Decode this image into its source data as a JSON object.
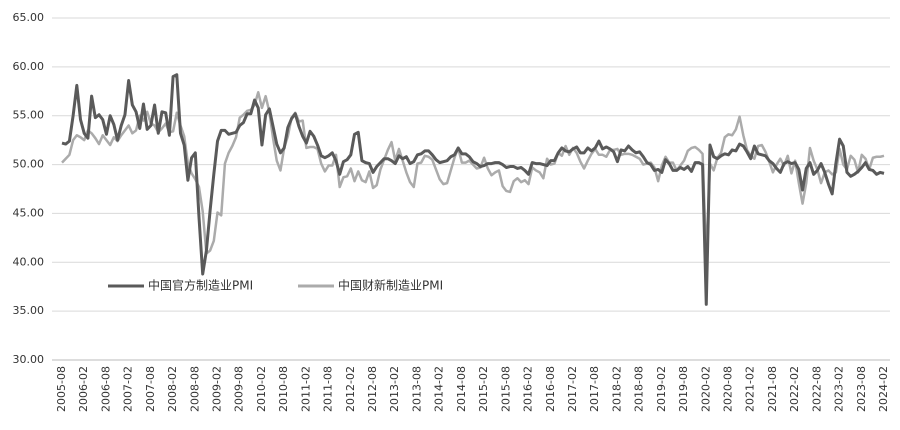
{
  "chart_data": {
    "type": "line",
    "categories": [
      "2005-08",
      null,
      null,
      null,
      null,
      null,
      "2006-02",
      null,
      null,
      null,
      null,
      null,
      "2006-08",
      null,
      null,
      null,
      null,
      null,
      "2007-02",
      null,
      null,
      null,
      null,
      null,
      "2007-08",
      null,
      null,
      null,
      null,
      null,
      "2008-02",
      null,
      null,
      null,
      null,
      null,
      "2008-08",
      null,
      null,
      null,
      null,
      null,
      "2009-02",
      null,
      null,
      null,
      null,
      null,
      "2009-08",
      null,
      null,
      null,
      null,
      null,
      "2010-02",
      null,
      null,
      null,
      null,
      null,
      "2010-08",
      null,
      null,
      null,
      null,
      null,
      "2011-02",
      null,
      null,
      null,
      null,
      null,
      "2011-08",
      null,
      null,
      null,
      null,
      null,
      "2012-02",
      null,
      null,
      null,
      null,
      null,
      "2012-08",
      null,
      null,
      null,
      null,
      null,
      "2013-02",
      null,
      null,
      null,
      null,
      null,
      "2013-08",
      null,
      null,
      null,
      null,
      null,
      "2014-02",
      null,
      null,
      null,
      null,
      null,
      "2014-08",
      null,
      null,
      null,
      null,
      null,
      "2015-02",
      null,
      null,
      null,
      null,
      null,
      "2015-08",
      null,
      null,
      null,
      null,
      null,
      "2016-02",
      null,
      null,
      null,
      null,
      null,
      "2016-08",
      null,
      null,
      null,
      null,
      null,
      "2017-02",
      null,
      null,
      null,
      null,
      null,
      "2017-08",
      null,
      null,
      null,
      null,
      null,
      "2018-02",
      null,
      null,
      null,
      null,
      null,
      "2018-08",
      null,
      null,
      null,
      null,
      null,
      "2019-02",
      null,
      null,
      null,
      null,
      null,
      "2019-08",
      null,
      null,
      null,
      null,
      null,
      "2020-02",
      null,
      null,
      null,
      null,
      null,
      "2020-08",
      null,
      null,
      null,
      null,
      null,
      "2021-02",
      null,
      null,
      null,
      null,
      null,
      "2021-08",
      null,
      null,
      null,
      null,
      null,
      "2022-02",
      null,
      null,
      null,
      null,
      null,
      "2022-08",
      null,
      null,
      null,
      null,
      null,
      "2023-02",
      null,
      null,
      null,
      null,
      null,
      "2023-08",
      null,
      null,
      null,
      null,
      null,
      "2024-02"
    ],
    "series": [
      {
        "name": "中国官方制造业PMI",
        "color": "#5a5a5a",
        "values": [
          52.2,
          52.1,
          52.4,
          55.0,
          58.1,
          54.6,
          53.2,
          52.7,
          57.0,
          54.8,
          55.1,
          54.6,
          53.1,
          55.0,
          54.1,
          52.5,
          54.0,
          55.1,
          58.6,
          56.1,
          55.4,
          53.7,
          56.2,
          53.6,
          54.0,
          56.1,
          53.2,
          55.4,
          55.3,
          53.0,
          59.0,
          59.2,
          53.2,
          52.0,
          48.4,
          50.7,
          51.2,
          44.6,
          38.8,
          41.2,
          45.3,
          49.0,
          52.4,
          53.5,
          53.5,
          53.1,
          53.2,
          53.3,
          54.0,
          54.3,
          55.2,
          55.2,
          56.6,
          55.8,
          52.0,
          55.1,
          55.7,
          53.9,
          52.1,
          51.2,
          51.7,
          53.8,
          54.7,
          55.2,
          53.9,
          52.9,
          52.2,
          53.4,
          52.9,
          52.0,
          50.9,
          50.7,
          50.9,
          51.2,
          50.4,
          49.0,
          50.3,
          50.5,
          51.0,
          53.1,
          53.3,
          50.4,
          50.2,
          50.1,
          49.2,
          49.8,
          50.2,
          50.6,
          50.6,
          50.4,
          50.1,
          50.9,
          50.6,
          50.8,
          50.1,
          50.3,
          51.0,
          51.1,
          51.4,
          51.4,
          51.0,
          50.5,
          50.2,
          50.3,
          50.4,
          50.8,
          51.0,
          51.7,
          51.1,
          51.1,
          50.8,
          50.3,
          50.1,
          49.8,
          49.9,
          50.1,
          50.1,
          50.2,
          50.2,
          50.0,
          49.7,
          49.8,
          49.8,
          49.6,
          49.7,
          49.4,
          49.0,
          50.2,
          50.1,
          50.1,
          50.0,
          49.9,
          50.4,
          50.4,
          51.2,
          51.7,
          51.4,
          51.3,
          51.6,
          51.8,
          51.2,
          51.2,
          51.7,
          51.4,
          51.7,
          52.4,
          51.6,
          51.8,
          51.6,
          51.3,
          50.3,
          51.5,
          51.4,
          51.9,
          51.5,
          51.2,
          51.3,
          50.8,
          50.2,
          50.0,
          49.4,
          49.5,
          49.2,
          50.5,
          50.1,
          49.4,
          49.4,
          49.7,
          49.5,
          49.8,
          49.3,
          50.2,
          50.2,
          50.0,
          35.7,
          52.0,
          50.8,
          50.6,
          50.9,
          51.1,
          51.0,
          51.5,
          51.4,
          52.1,
          51.9,
          51.3,
          50.6,
          51.9,
          51.1,
          51.0,
          50.9,
          50.4,
          50.1,
          49.6,
          49.2,
          50.1,
          50.3,
          50.1,
          50.2,
          49.5,
          47.4,
          49.6,
          50.2,
          49.0,
          49.4,
          50.1,
          49.2,
          48.0,
          47.0,
          50.1,
          52.6,
          51.9,
          49.2,
          48.8,
          49.0,
          49.3,
          49.7,
          50.2,
          49.5,
          49.4,
          49.0,
          49.2,
          49.1
        ]
      },
      {
        "name": "中国财新制造业PMI",
        "color": "#ababab",
        "values": [
          50.2,
          50.6,
          51.0,
          52.5,
          53.0,
          52.8,
          52.5,
          53.5,
          53.2,
          52.7,
          52.1,
          53.0,
          52.5,
          52.0,
          52.8,
          52.4,
          53.0,
          53.5,
          54.0,
          53.2,
          53.5,
          55.0,
          54.5,
          55.4,
          54.2,
          54.0,
          53.3,
          53.7,
          54.2,
          53.3,
          53.4,
          55.3,
          54.0,
          52.9,
          50.1,
          49.1,
          48.5,
          47.7,
          45.2,
          40.9,
          41.2,
          42.2,
          45.1,
          44.8,
          50.1,
          51.2,
          51.9,
          52.8,
          54.8,
          55.1,
          55.5,
          55.6,
          56.1,
          57.4,
          55.8,
          57.0,
          55.4,
          52.7,
          50.4,
          49.4,
          51.7,
          52.9,
          54.8,
          55.3,
          54.4,
          54.5,
          51.7,
          51.8,
          51.8,
          51.6,
          50.1,
          49.3,
          49.9,
          49.9,
          51.0,
          47.7,
          48.7,
          48.8,
          49.6,
          48.3,
          49.3,
          48.4,
          48.2,
          49.3,
          47.6,
          47.9,
          49.5,
          50.5,
          51.5,
          52.3,
          50.4,
          51.6,
          50.4,
          49.2,
          48.2,
          47.7,
          50.1,
          50.2,
          50.9,
          50.8,
          50.5,
          49.5,
          48.5,
          48.0,
          48.1,
          49.4,
          50.7,
          51.7,
          50.2,
          50.2,
          50.4,
          50.0,
          49.6,
          49.7,
          50.7,
          49.6,
          48.9,
          49.2,
          49.4,
          47.8,
          47.3,
          47.2,
          48.3,
          48.6,
          48.2,
          48.4,
          48.0,
          49.7,
          49.4,
          49.2,
          48.6,
          50.6,
          50.0,
          50.1,
          51.2,
          50.9,
          51.9,
          51.0,
          51.7,
          51.2,
          50.3,
          49.6,
          50.4,
          51.1,
          51.6,
          51.0,
          51.0,
          50.8,
          51.5,
          51.5,
          51.6,
          51.0,
          51.1,
          51.1,
          51.0,
          50.8,
          50.6,
          50.0,
          50.1,
          50.2,
          49.7,
          48.3,
          49.9,
          50.8,
          50.2,
          50.2,
          49.4,
          49.9,
          50.4,
          51.4,
          51.7,
          51.8,
          51.5,
          51.1,
          40.3,
          50.1,
          49.4,
          50.7,
          51.2,
          52.8,
          53.1,
          53.0,
          53.6,
          54.9,
          53.0,
          51.5,
          50.9,
          50.6,
          51.9,
          52.0,
          51.3,
          50.3,
          49.2,
          50.0,
          50.6,
          49.9,
          50.9,
          49.1,
          50.4,
          48.1,
          46.0,
          48.1,
          51.7,
          50.4,
          49.5,
          48.1,
          49.2,
          49.4,
          49.0,
          49.2,
          51.6,
          50.0,
          49.5,
          50.9,
          50.5,
          49.2,
          51.0,
          50.6,
          49.5,
          50.7,
          50.8,
          50.8,
          50.9
        ]
      }
    ],
    "ylim": [
      30,
      65
    ],
    "yticks": [
      {
        "value": 30,
        "label": "30.00"
      },
      {
        "value": 35,
        "label": "35.00"
      },
      {
        "value": 40,
        "label": "40.00"
      },
      {
        "value": 45,
        "label": "45.00"
      },
      {
        "value": 50,
        "label": "50.00"
      },
      {
        "value": 55,
        "label": "55.00"
      },
      {
        "value": 60,
        "label": "60.00"
      },
      {
        "value": 65,
        "label": "65.00"
      }
    ],
    "grid": true,
    "legend": "inside-left"
  }
}
